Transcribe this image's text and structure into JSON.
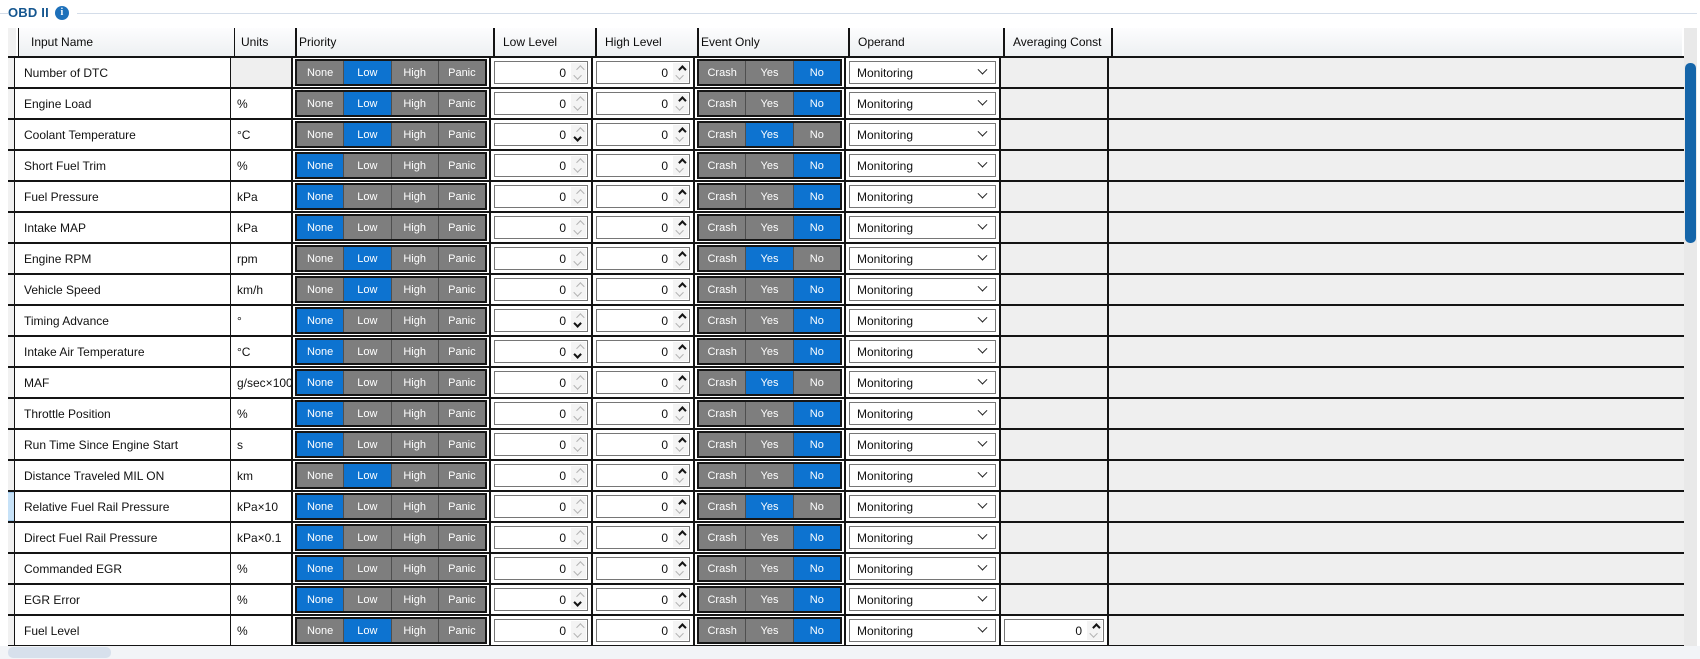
{
  "group": {
    "title": "OBD II"
  },
  "columns": {
    "input_name": "Input Name",
    "units": "Units",
    "priority": "Priority",
    "low_level": "Low Level",
    "high_level": "High Level",
    "event_only": "Event Only",
    "operand": "Operand",
    "averaging_const": "Averaging Const"
  },
  "priority_options": [
    "None",
    "Low",
    "High",
    "Panic"
  ],
  "event_options": [
    "Crash",
    "Yes",
    "No"
  ],
  "colors": {
    "accent_selected": "#0d73d0",
    "button_gray": "#7e7e7e",
    "scrollbar_thumb_blue": "#1565a9",
    "group_title_blue": "#15568f"
  },
  "rows": [
    {
      "name": "Number of DTC",
      "units": "",
      "priority": "Low",
      "low_level": "0",
      "low_down": false,
      "high_level": "0",
      "event": "No",
      "operand": "Monitoring",
      "avg": null,
      "selected": false
    },
    {
      "name": "Engine Load",
      "units": "%",
      "priority": "Low",
      "low_level": "0",
      "low_down": false,
      "high_level": "0",
      "event": "No",
      "operand": "Monitoring",
      "avg": null,
      "selected": false
    },
    {
      "name": "Coolant Temperature",
      "units": "°C",
      "priority": "Low",
      "low_level": "0",
      "low_down": true,
      "high_level": "0",
      "event": "Yes",
      "operand": "Monitoring",
      "avg": null,
      "selected": false
    },
    {
      "name": "Short Fuel Trim",
      "units": "%",
      "priority": "None",
      "low_level": "0",
      "low_down": false,
      "high_level": "0",
      "event": "No",
      "operand": "Monitoring",
      "avg": null,
      "selected": false
    },
    {
      "name": "Fuel Pressure",
      "units": "kPa",
      "priority": "None",
      "low_level": "0",
      "low_down": false,
      "high_level": "0",
      "event": "No",
      "operand": "Monitoring",
      "avg": null,
      "selected": false
    },
    {
      "name": "Intake MAP",
      "units": "kPa",
      "priority": "None",
      "low_level": "0",
      "low_down": false,
      "high_level": "0",
      "event": "No",
      "operand": "Monitoring",
      "avg": null,
      "selected": false
    },
    {
      "name": "Engine RPM",
      "units": "rpm",
      "priority": "Low",
      "low_level": "0",
      "low_down": false,
      "high_level": "0",
      "event": "Yes",
      "operand": "Monitoring",
      "avg": null,
      "selected": false
    },
    {
      "name": "Vehicle Speed",
      "units": "km/h",
      "priority": "Low",
      "low_level": "0",
      "low_down": false,
      "high_level": "0",
      "event": "No",
      "operand": "Monitoring",
      "avg": null,
      "selected": false
    },
    {
      "name": "Timing Advance",
      "units": "°",
      "priority": "None",
      "low_level": "0",
      "low_down": true,
      "high_level": "0",
      "event": "No",
      "operand": "Monitoring",
      "avg": null,
      "selected": false
    },
    {
      "name": "Intake Air Temperature",
      "units": "°C",
      "priority": "None",
      "low_level": "0",
      "low_down": true,
      "high_level": "0",
      "event": "No",
      "operand": "Monitoring",
      "avg": null,
      "selected": false
    },
    {
      "name": "MAF",
      "units": "g/sec×100",
      "priority": "None",
      "low_level": "0",
      "low_down": false,
      "high_level": "0",
      "event": "Yes",
      "operand": "Monitoring",
      "avg": null,
      "selected": false
    },
    {
      "name": "Throttle Position",
      "units": "%",
      "priority": "None",
      "low_level": "0",
      "low_down": false,
      "high_level": "0",
      "event": "No",
      "operand": "Monitoring",
      "avg": null,
      "selected": false
    },
    {
      "name": "Run Time Since Engine Start",
      "units": "s",
      "priority": "None",
      "low_level": "0",
      "low_down": false,
      "high_level": "0",
      "event": "No",
      "operand": "Monitoring",
      "avg": null,
      "selected": false
    },
    {
      "name": "Distance Traveled MIL ON",
      "units": "km",
      "priority": "Low",
      "low_level": "0",
      "low_down": false,
      "high_level": "0",
      "event": "No",
      "operand": "Monitoring",
      "avg": null,
      "selected": false
    },
    {
      "name": "Relative Fuel Rail Pressure",
      "units": "kPa×10",
      "priority": "None",
      "low_level": "0",
      "low_down": false,
      "high_level": "0",
      "event": "Yes",
      "operand": "Monitoring",
      "avg": null,
      "selected": true
    },
    {
      "name": "Direct Fuel Rail Pressure",
      "units": "kPa×0.1",
      "priority": "None",
      "low_level": "0",
      "low_down": false,
      "high_level": "0",
      "event": "No",
      "operand": "Monitoring",
      "avg": null,
      "selected": false
    },
    {
      "name": "Commanded EGR",
      "units": "%",
      "priority": "None",
      "low_level": "0",
      "low_down": false,
      "high_level": "0",
      "event": "No",
      "operand": "Monitoring",
      "avg": null,
      "selected": false
    },
    {
      "name": "EGR Error",
      "units": "%",
      "priority": "None",
      "low_level": "0",
      "low_down": true,
      "high_level": "0",
      "event": "No",
      "operand": "Monitoring",
      "avg": null,
      "selected": false
    },
    {
      "name": "Fuel Level",
      "units": "%",
      "priority": "Low",
      "low_level": "0",
      "low_down": false,
      "high_level": "0",
      "event": "No",
      "operand": "Monitoring",
      "avg": "0",
      "selected": false
    }
  ]
}
